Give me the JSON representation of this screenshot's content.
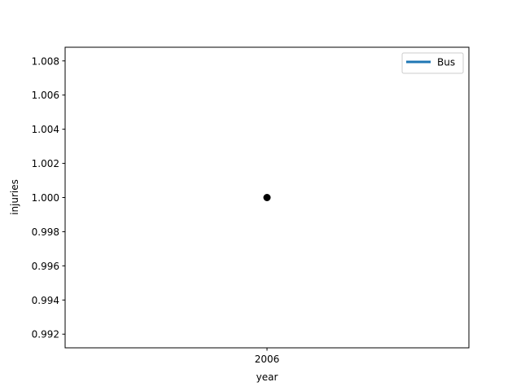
{
  "chart_data": {
    "type": "line",
    "title": "",
    "xlabel": "year",
    "ylabel": "injuries",
    "categories": [
      "2006"
    ],
    "series": [
      {
        "name": "Bus",
        "x": [
          "2006"
        ],
        "values": [
          1.0
        ],
        "color": "#1f77b4",
        "marker_color": "#000000"
      }
    ],
    "ylim": [
      0.9912,
      1.0088
    ],
    "yticks": [
      0.992,
      0.994,
      0.996,
      0.998,
      1.0,
      1.002,
      1.004,
      1.006,
      1.008
    ],
    "ytick_labels": [
      "0.992",
      "0.994",
      "0.996",
      "0.998",
      "1.000",
      "1.002",
      "1.004",
      "1.006",
      "1.008"
    ],
    "xtick_labels": [
      "2006"
    ],
    "grid": false,
    "legend_position": "top-right"
  }
}
